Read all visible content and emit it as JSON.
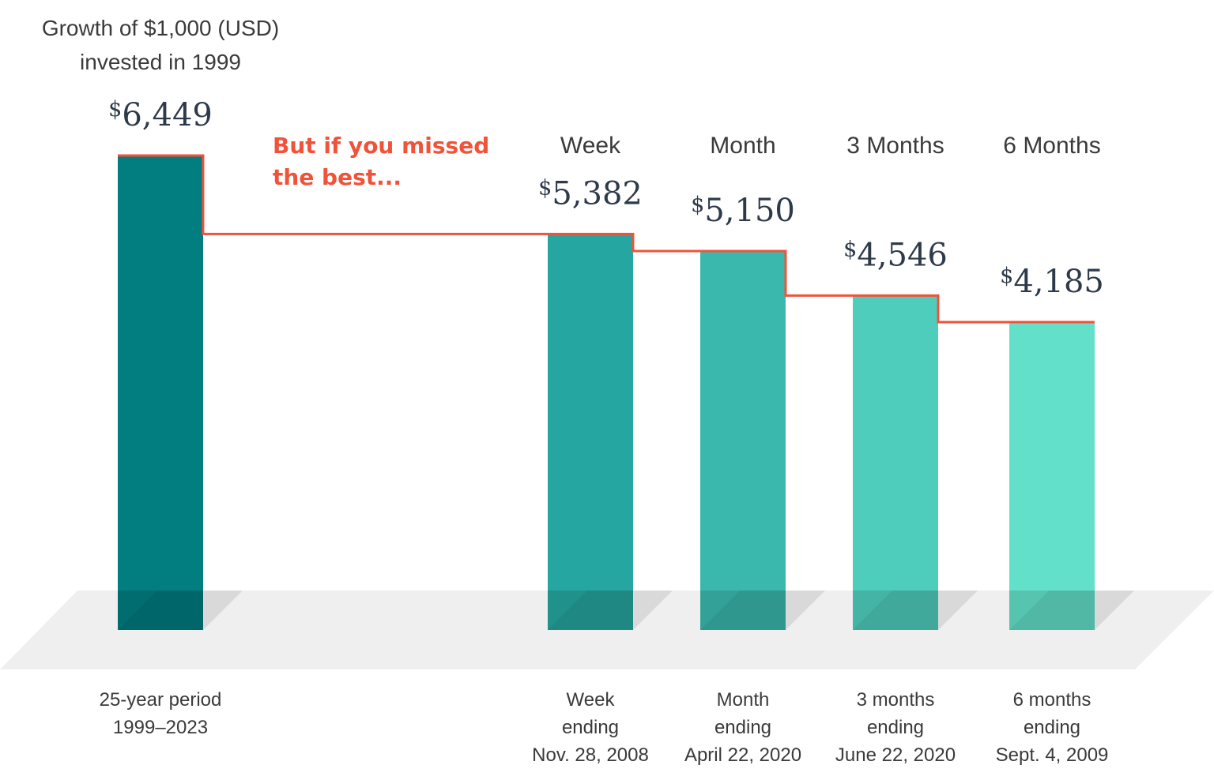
{
  "chart_data": {
    "type": "bar",
    "title": [
      "Growth of $1,000 (USD)",
      "invested in 1999"
    ],
    "annotation": [
      "But if you missed",
      "the best..."
    ],
    "currency_symbol": "$",
    "bars": [
      {
        "value": 6449,
        "value_label": "6,449",
        "top_label": "",
        "category": [
          "25-year period",
          "1999–2023"
        ],
        "color": "#027D80"
      },
      {
        "value": 5382,
        "value_label": "5,382",
        "top_label": "Week",
        "category": [
          "Week",
          "ending",
          "Nov. 28, 2008"
        ],
        "color": "#26A6A0"
      },
      {
        "value": 5150,
        "value_label": "5,150",
        "top_label": "Month",
        "category": [
          "Month",
          "ending",
          "April 22, 2020"
        ],
        "color": "#3BB8AD"
      },
      {
        "value": 4546,
        "value_label": "4,546",
        "top_label": "3 Months",
        "category": [
          "3 months",
          "ending",
          "June 22, 2020"
        ],
        "color": "#4ECDBD"
      },
      {
        "value": 4185,
        "value_label": "4,185",
        "top_label": "6 Months",
        "category": [
          "6 months",
          "ending",
          "Sept. 4, 2009"
        ],
        "color": "#63E0C9"
      }
    ],
    "colors": {
      "step_line": "#F0533A",
      "floor": "#EFEFEF",
      "annotation": "#F0533A"
    }
  }
}
